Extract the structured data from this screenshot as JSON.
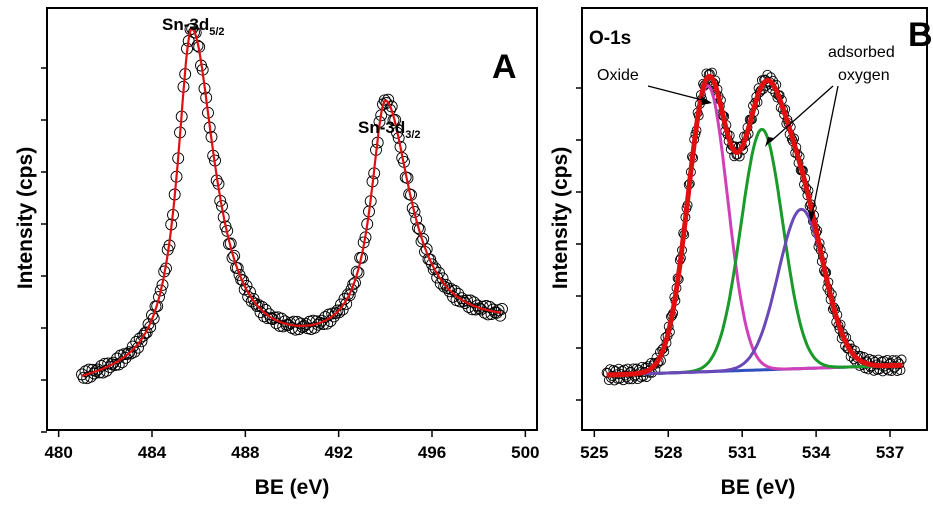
{
  "colors": {
    "markers": "#000000",
    "fit": "#e01010",
    "oxide": "#d040b8",
    "adsorbed": "#1a9a2a",
    "adsorbed2": "#6a48b8",
    "background": "#3050c0"
  },
  "chart_data": [
    {
      "type": "line",
      "panel": "A",
      "title": "",
      "xlabel": "BE (eV)",
      "ylabel": "Intensity (cps)",
      "xlim": [
        479.5,
        500.5
      ],
      "x_ticks": [
        480,
        484,
        488,
        492,
        496,
        500
      ],
      "annotations": [
        {
          "text": "Sn-3d",
          "sub": "5/2",
          "x": 485.7
        },
        {
          "text": "Sn-3d",
          "sub": "3/2",
          "x": 494
        }
      ],
      "peaks": [
        {
          "center": 485.7,
          "height": 1.0,
          "hw_left": 0.75,
          "hw_right": 1.2
        },
        {
          "center": 494.0,
          "height": 0.7,
          "hw_left": 0.75,
          "hw_right": 1.3
        }
      ],
      "baseline": {
        "start": 0.0,
        "end": 0.16,
        "x0": 481,
        "x1": 499
      },
      "x_range": [
        481,
        499
      ],
      "series": [
        {
          "style": "open-circles",
          "color": "#000000"
        },
        {
          "style": "line",
          "color": "#e01010"
        }
      ]
    },
    {
      "type": "line",
      "panel": "B",
      "title": "",
      "xlabel": "BE (eV)",
      "ylabel": "Intensity (cps)",
      "xlim": [
        524.5,
        538.5
      ],
      "x_ticks": [
        525,
        528,
        531,
        534,
        537
      ],
      "annotations": [
        {
          "text": "O-1s"
        },
        {
          "text": "Oxide"
        },
        {
          "text": "adsorbed"
        },
        {
          "text": "oxygen"
        }
      ],
      "components": [
        {
          "name": "Oxide",
          "center": 529.6,
          "height": 0.88,
          "fwhm": 1.9,
          "color": "#d040b8"
        },
        {
          "name": "adsorbed oxygen",
          "center": 531.8,
          "height": 0.74,
          "fwhm": 2.0,
          "color": "#1a9a2a"
        },
        {
          "name": "adsorbed oxygen",
          "center": 533.4,
          "height": 0.49,
          "fwhm": 2.2,
          "color": "#6a48b8"
        }
      ],
      "x_range": [
        525.5,
        537.5
      ],
      "series": [
        {
          "style": "open-circles",
          "color": "#000000"
        },
        {
          "style": "line",
          "color": "#e01010"
        },
        {
          "style": "line",
          "color": "#3050c0"
        }
      ]
    }
  ]
}
